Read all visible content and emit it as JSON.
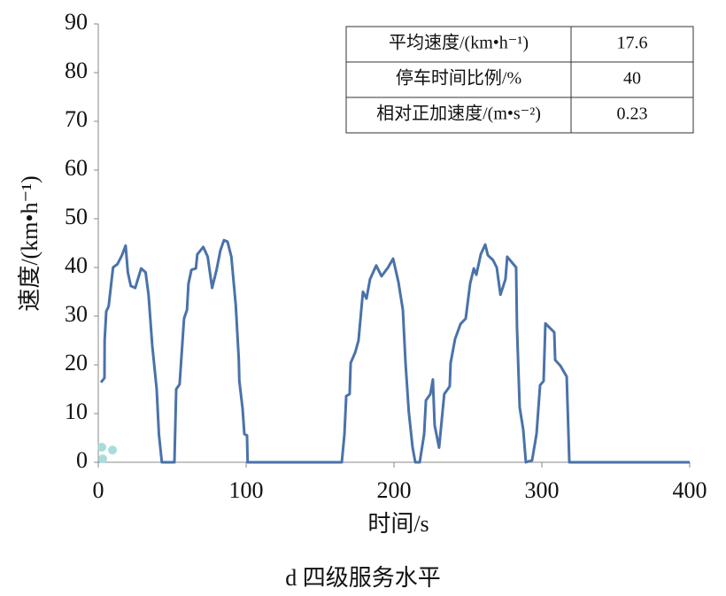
{
  "chart_data": {
    "type": "line",
    "xlabel": "时间/s",
    "ylabel": "速度/(km•h⁻¹)",
    "caption": "d 四级服务水平",
    "xlim": [
      0,
      400
    ],
    "xticks": [
      0,
      100,
      200,
      300,
      400
    ],
    "ylim": [
      0,
      90
    ],
    "yticks": [
      0,
      10,
      20,
      30,
      40,
      50,
      60,
      70,
      80,
      90
    ],
    "grid": false,
    "series": [
      {
        "type": "line",
        "color": "#4a72aa",
        "x": [
          1.8,
          4.2,
          4.3,
          5.4,
          7,
          10,
          13,
          16,
          18.5,
          20,
          22,
          25,
          29,
          32,
          34,
          36.5,
          39.5,
          41,
          43,
          51.5,
          52.7,
          55,
          58,
          60,
          61,
          63,
          66,
          67,
          71,
          74,
          77,
          80,
          82.6,
          85,
          87.4,
          90,
          93,
          95,
          95.4,
          97.6,
          98.8,
          100.6,
          101,
          164.7,
          166.5,
          167.7,
          170,
          170.7,
          173.7,
          176,
          179,
          181.4,
          183.8,
          188,
          191.6,
          196,
          199.4,
          203,
          206,
          207.8,
          210,
          212.6,
          214.4,
          217.4,
          220.4,
          221.6,
          224.6,
          226.3,
          227.5,
          230.5,
          234,
          237.7,
          238.3,
          241.3,
          245,
          248.5,
          251.5,
          254,
          255.7,
          258.7,
          261.7,
          263.5,
          267,
          269.5,
          272,
          275.4,
          276.6,
          282.6,
          283.2,
          285,
          287.4,
          289.2,
          293.4,
          296.4,
          298.8,
          301.2,
          302.4,
          308.4,
          309,
          312.6,
          316.8,
          318.6,
          400
        ],
        "values": [
          16.4,
          17.3,
          25,
          31,
          32,
          40,
          40.7,
          42.5,
          44.5,
          39,
          36.2,
          35.8,
          39.8,
          39,
          34.4,
          24,
          15,
          5.8,
          0,
          0,
          15,
          16,
          29.5,
          31.3,
          36.7,
          39.5,
          39.8,
          42.7,
          44.2,
          42.2,
          35.8,
          39.5,
          43.5,
          45.6,
          45.3,
          42.2,
          32.2,
          21.3,
          16.7,
          11,
          5.8,
          5.5,
          0,
          0,
          5.8,
          13.6,
          14,
          20.4,
          22.5,
          25,
          35,
          33.6,
          37.6,
          40.4,
          38.2,
          40,
          41.8,
          37,
          31.3,
          20.4,
          10.4,
          3,
          0,
          0,
          5.8,
          12.7,
          14,
          17,
          7.6,
          3,
          14,
          15.6,
          20.4,
          25.3,
          28.4,
          29.5,
          36.7,
          39.8,
          38.5,
          42.7,
          44.7,
          42.5,
          41.5,
          40,
          34.4,
          37.6,
          42.2,
          40,
          27.6,
          11.3,
          6.7,
          0,
          0.4,
          5.8,
          15.8,
          16.7,
          28.5,
          26.7,
          21,
          19.8,
          17.6,
          0,
          0
        ]
      },
      {
        "type": "scatter",
        "color": "#a8dcdc",
        "x": [
          2.4,
          9.6,
          3
        ],
        "values": [
          3.1,
          2.5,
          0.7
        ]
      }
    ],
    "table": {
      "rows": [
        [
          "平均速度/(km•h⁻¹)",
          "17.6"
        ],
        [
          "停车时间比例/%",
          "40"
        ],
        [
          "相对正加速度/(m•s⁻²)",
          "0.23"
        ]
      ]
    }
  }
}
